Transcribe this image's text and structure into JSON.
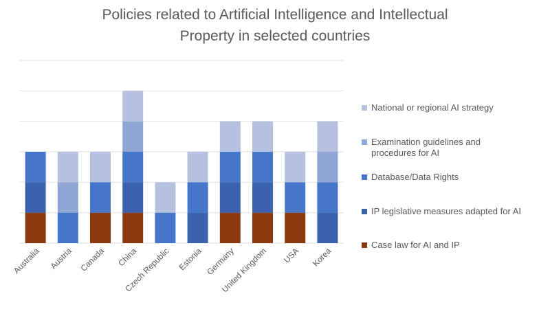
{
  "chart_data": {
    "type": "bar",
    "stacked": true,
    "title_lines": [
      "Policies related to Artificial Intelligence and Intellectual",
      "Property in selected countries"
    ],
    "categories": [
      "Australia",
      "Austria",
      "Canada",
      "China",
      "Czech Republic",
      "Estonia",
      "Germany",
      "United Kingdom",
      "USA",
      "Korea"
    ],
    "series": [
      {
        "name": "Case law for AI and IP",
        "color": "#8b3a0e",
        "values": [
          1,
          0,
          1,
          1,
          0,
          0,
          1,
          1,
          1,
          0
        ]
      },
      {
        "name": "IP legislative measures adapted for AI",
        "color": "#3a62ad",
        "values": [
          1,
          0,
          0,
          1,
          0,
          1,
          1,
          1,
          0,
          1
        ]
      },
      {
        "name": "Database/Data Rights",
        "color": "#4576c9",
        "values": [
          1,
          1,
          1,
          1,
          1,
          1,
          1,
          1,
          1,
          1
        ]
      },
      {
        "name": "Examination guidelines and procedures for AI",
        "color": "#8fa5d3",
        "values": [
          0,
          1,
          0,
          1,
          0,
          0,
          0,
          0,
          0,
          1
        ]
      },
      {
        "name": "National or regional AI strategy",
        "color": "#b6c1e0",
        "values": [
          0,
          1,
          1,
          1,
          1,
          1,
          1,
          1,
          1,
          1
        ]
      }
    ],
    "legend_order": [
      4,
      3,
      2,
      1,
      0
    ],
    "legend_position": "right",
    "ylim": [
      0,
      6
    ],
    "grid": true,
    "xlabel": "",
    "ylabel": ""
  }
}
